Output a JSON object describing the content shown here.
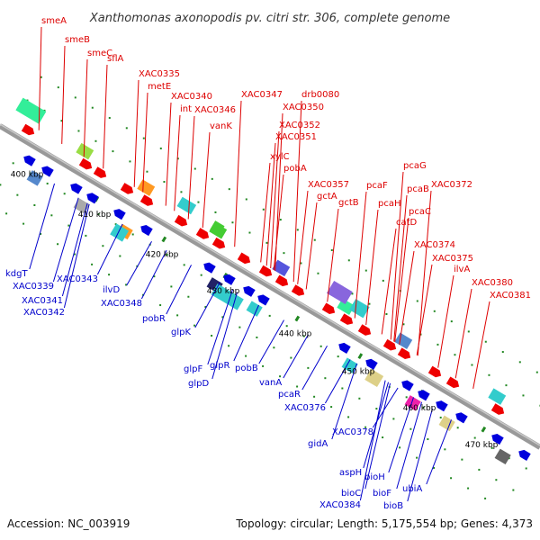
{
  "title": "Xanthomonas axonopodis pv. citri str. 306, complete genome",
  "accession": "Accession: NC_003919",
  "topology": "Topology: circular; Length: 5,175,554 bp; Genes: 4,373",
  "colors": {
    "backbone": "#999999",
    "forward_label": "#dd0000",
    "reverse_label": "#0000cc",
    "tick": "#228822"
  },
  "scale_labels": [
    "400 kbp",
    "410 kbp",
    "420 kbp",
    "430 kbp",
    "440 kbp",
    "450 kbp",
    "460 kbp",
    "470 kbp"
  ],
  "forward_genes": [
    "smeA",
    "smeB",
    "smeC",
    "sflA",
    "XAC0335",
    "metE",
    "XAC0340",
    "int",
    "XAC0346",
    "XAC0347",
    "vanK",
    "XAC0350",
    "drb0080",
    "XAC0352",
    "XAC0351",
    "xylC",
    "pobA",
    "XAC0357",
    "gctA",
    "gctB",
    "pcaF",
    "pcaH",
    "pcaG",
    "pcaB",
    "XAC0372",
    "pcaC",
    "catD",
    "XAC0374",
    "XAC0375",
    "ilvA",
    "XAC0380",
    "XAC0381"
  ],
  "reverse_genes": [
    "kdgT",
    "XAC0339",
    "XAC0343",
    "XAC0341",
    "XAC0342",
    "ilvD",
    "XAC0348",
    "pobR",
    "glpK",
    "glpF",
    "glpR",
    "glpD",
    "pobB",
    "vanA",
    "pcaR",
    "XAC0376",
    "XAC0378",
    "gidA",
    "aspH",
    "bioH",
    "bioC",
    "XAC0384",
    "bioF",
    "bioB",
    "ubiA"
  ]
}
